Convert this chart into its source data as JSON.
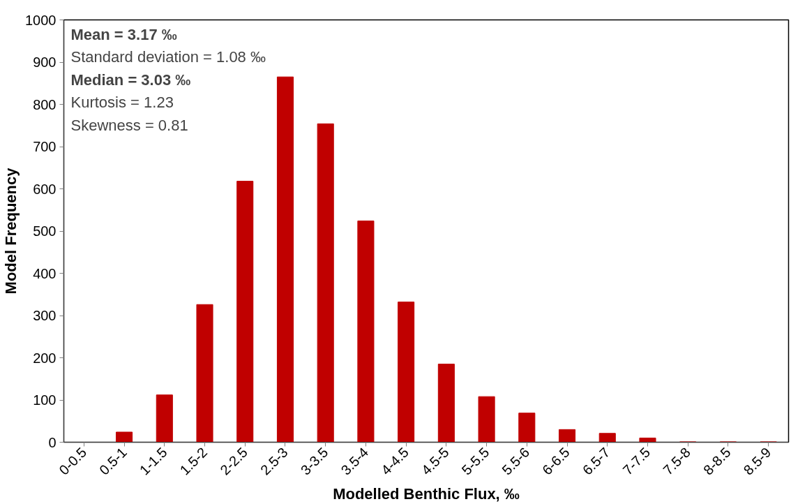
{
  "chart_data": {
    "type": "bar",
    "xlabel": "Modelled Benthic Flux, ‰",
    "ylabel": "Model Frequency",
    "categories": [
      "0-0.5",
      "0.5-1",
      "1-1.5",
      "1.5-2",
      "2-2.5",
      "2.5-3",
      "3-3.5",
      "3.5-4",
      "4-4.5",
      "4.5-5",
      "5-5.5",
      "5.5-6",
      "6-6.5",
      "6.5-7",
      "7-7.5",
      "7.5-8",
      "8-8.5",
      "8.5-9"
    ],
    "values": [
      0,
      24,
      112,
      326,
      618,
      865,
      754,
      524,
      332,
      185,
      108,
      69,
      30,
      21,
      10,
      1,
      1,
      1
    ],
    "color": "#c00000",
    "ylim": [
      0,
      1000
    ],
    "yticks": [
      0,
      100,
      200,
      300,
      400,
      500,
      600,
      700,
      800,
      900,
      1000
    ],
    "grid": false,
    "annotations": [
      "Mean = 3.17 ‰",
      "Standard deviation = 1.08 ‰",
      "Median = 3.03 ‰",
      "Kurtosis = 1.23",
      "Skewness = 0.81"
    ]
  }
}
